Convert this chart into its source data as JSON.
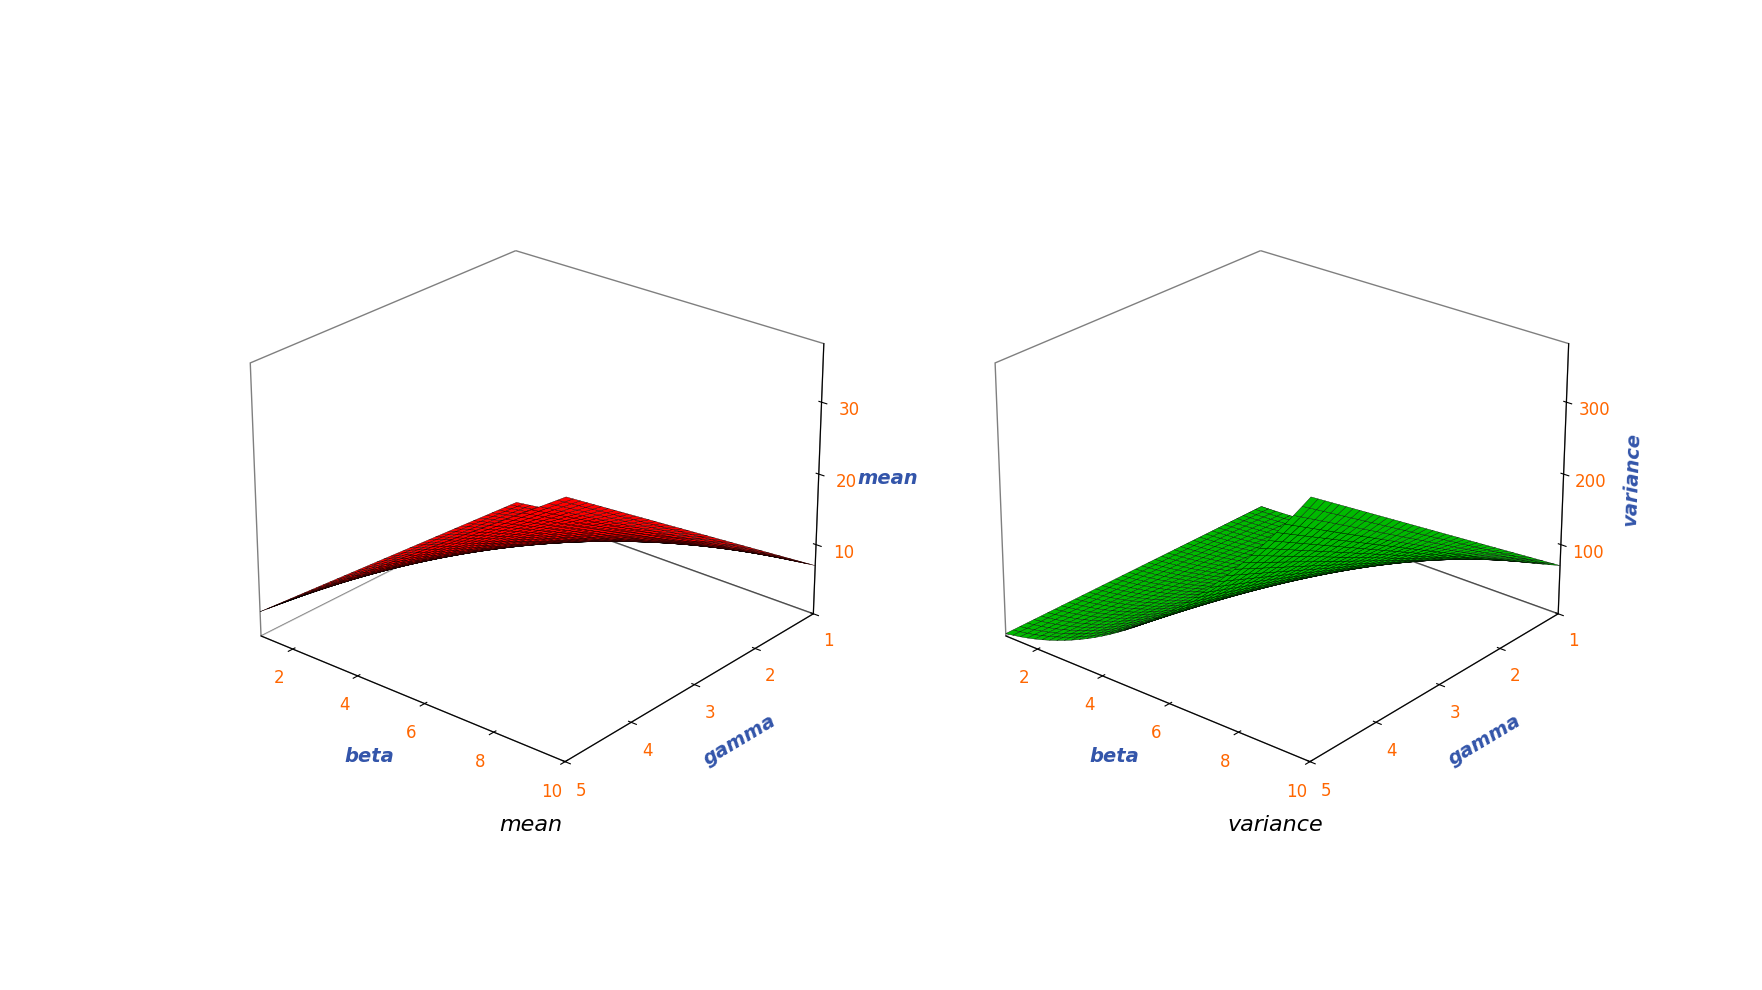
{
  "beta_min": 1,
  "beta_max": 10,
  "gamma_min": 1,
  "gamma_max": 5,
  "beta_ticks": [
    2,
    4,
    6,
    8,
    10
  ],
  "gamma_ticks": [
    1,
    2,
    3,
    4,
    5
  ],
  "mean_zticks": [
    10,
    20,
    30
  ],
  "var_zticks": [
    100,
    200,
    300
  ],
  "mean_zlim": [
    0,
    38
  ],
  "var_zlim": [
    0,
    380
  ],
  "mean_color": "#FF0000",
  "var_color": "#00BB00",
  "xlabel": "beta",
  "ylabel": "gamma",
  "mean_zlabel": "mean",
  "var_zlabel": "variance",
  "title_mean": "mean",
  "title_var": "variance",
  "n_points": 40,
  "tick_color": "#FF6600",
  "label_color": "#3355AA",
  "axis_label_color": "#3355AA"
}
